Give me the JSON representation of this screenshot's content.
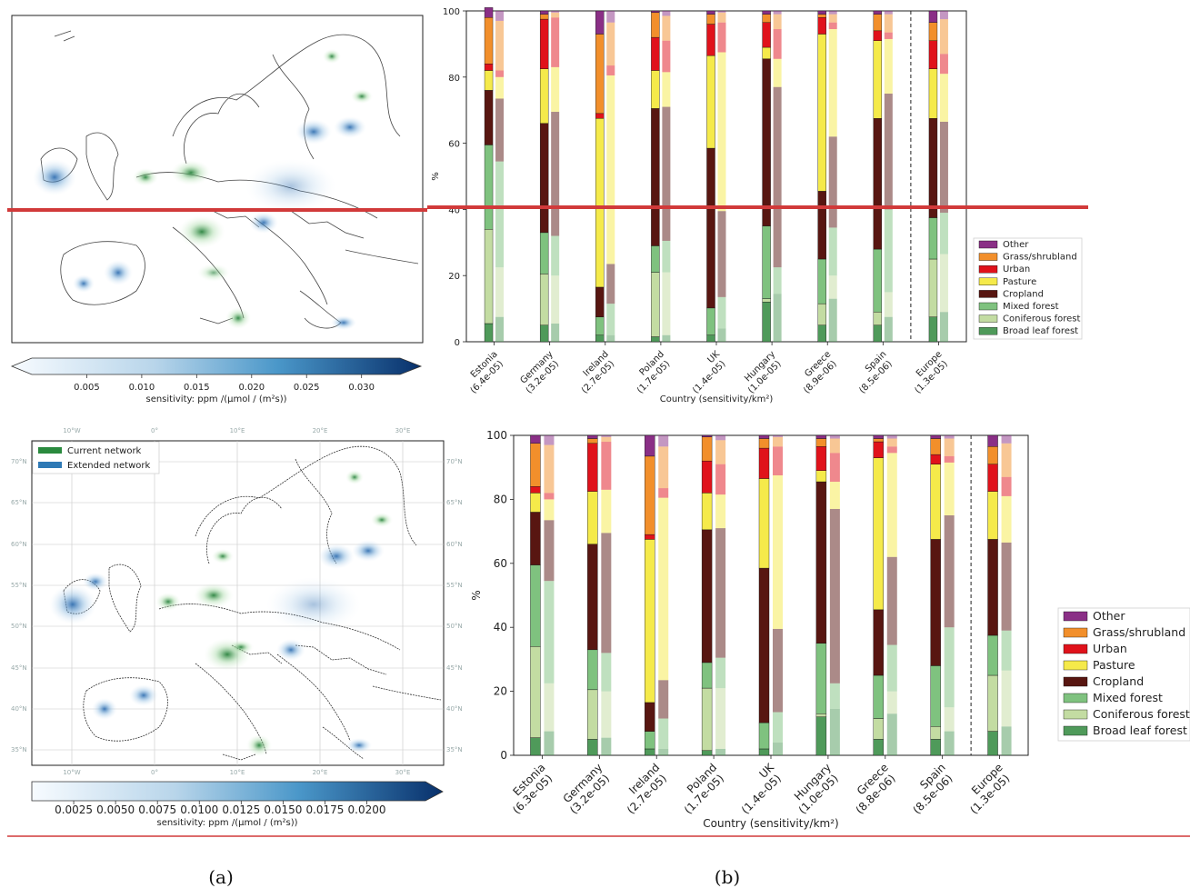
{
  "captions": {
    "a": "(a)",
    "b": "(b)"
  },
  "colors": {
    "Other": "#8a2f86",
    "Grass/shrubland": "#f28f2b",
    "Urban": "#e0121b",
    "Pasture": "#f5ea4a",
    "Cropland": "#581611",
    "Mixed forest": "#7fc27f",
    "Coniferous forest": "#c3dca2",
    "Broad leaf forest": "#4f9a5a",
    "highlight_line": "#d13a3a"
  },
  "map_top": {
    "colorbar_ticks": [
      "0.005",
      "0.010",
      "0.015",
      "0.020",
      "0.025",
      "0.030"
    ],
    "colorbar_label": "sensitivity: ppm /(μmol / (m²s))"
  },
  "map_bottom": {
    "colorbar_ticks": [
      "0.0025",
      "0.0050",
      "0.0075",
      "0.0100",
      "0.0125",
      "0.0150",
      "0.0175",
      "0.0200"
    ],
    "colorbar_label": "sensitivity: ppm /(μmol / (m²s))",
    "legend": [
      {
        "label": "Current network",
        "color": "#2a8a3e"
      },
      {
        "label": "Extended network",
        "color": "#2e79b5"
      }
    ],
    "lon_labels": [
      "10°W",
      "0°",
      "10°E",
      "20°E",
      "30°E"
    ],
    "lat_labels": [
      "70°N",
      "65°N",
      "60°N",
      "55°N",
      "50°N",
      "45°N",
      "40°N",
      "35°N"
    ]
  },
  "chart_data": [
    {
      "type": "bar",
      "subtype": "stacked",
      "panel": "top",
      "xlabel": "Country (sensitivity/km²)",
      "ylabel": "%",
      "ylim": [
        0,
        100
      ],
      "yticks": [
        0,
        20,
        40,
        60,
        80,
        100
      ],
      "categories": [
        [
          "Estonia",
          "(6.4e-05)"
        ],
        [
          "Germany",
          "(3.2e-05)"
        ],
        [
          "Ireland",
          "(2.7e-05)"
        ],
        [
          "Poland",
          "(1.7e-05)"
        ],
        [
          "UK",
          "(1.4e-05)"
        ],
        [
          "Hungary",
          "(1.0e-05)"
        ],
        [
          "Greece",
          "(8.9e-06)"
        ],
        [
          "Spain",
          "(8.5e-06)"
        ],
        [
          "Europe",
          "(1.3e-05)"
        ]
      ],
      "legend_order": [
        "Other",
        "Grass/shrubland",
        "Urban",
        "Pasture",
        "Cropland",
        "Mixed forest",
        "Coniferous forest",
        "Broad leaf forest"
      ],
      "stack_order": [
        "Broad leaf forest",
        "Coniferous forest",
        "Mixed forest",
        "Cropland",
        "Pasture",
        "Urban",
        "Grass/shrubland",
        "Other"
      ],
      "series_bar1": [
        [
          5.5,
          28.5,
          25.5,
          16.5,
          6,
          2,
          14,
          3
        ],
        [
          5,
          15.5,
          12.5,
          33,
          16.5,
          15,
          1.5,
          1
        ],
        [
          2,
          0,
          5.5,
          9,
          51,
          1.5,
          24,
          7
        ],
        [
          1.5,
          19.5,
          8,
          41.5,
          11.5,
          10,
          7.5,
          0.5
        ],
        [
          2,
          0,
          8.2,
          48.3,
          28,
          9.5,
          3,
          1
        ],
        [
          12,
          1,
          22,
          50.5,
          3.5,
          7.5,
          2.5,
          1
        ],
        [
          5,
          6.5,
          13.5,
          20.5,
          47.5,
          5,
          1,
          1
        ],
        [
          5,
          4,
          19,
          39.5,
          23.5,
          3,
          5,
          1
        ],
        [
          7.5,
          17.5,
          12.5,
          30,
          15,
          8.5,
          5.5,
          3.5
        ]
      ],
      "series_bar2": [
        [
          7.5,
          15,
          32,
          19,
          6.5,
          2,
          15,
          3
        ],
        [
          5.5,
          14.5,
          12,
          37.5,
          13.5,
          15,
          1.5,
          0.5
        ],
        [
          2,
          0,
          9.5,
          12,
          57,
          3,
          13,
          3.5
        ],
        [
          2,
          19,
          9.5,
          40.5,
          10.5,
          9.5,
          7.5,
          1.5
        ],
        [
          4,
          0,
          9.5,
          26,
          48,
          9,
          3,
          0.5
        ],
        [
          14.5,
          0,
          8,
          54.5,
          8.5,
          9,
          4.5,
          1
        ],
        [
          13,
          7,
          14.5,
          27.5,
          32.5,
          2,
          2.5,
          1
        ],
        [
          7.5,
          7.5,
          25,
          35,
          16.5,
          2,
          5.5,
          1
        ],
        [
          9,
          17.5,
          12.5,
          27.5,
          14.5,
          6,
          10.5,
          2.5
        ]
      ]
    },
    {
      "type": "bar",
      "subtype": "stacked",
      "panel": "bottom",
      "xlabel": "Country (sensitivity/km²)",
      "ylabel": "%",
      "ylim": [
        0,
        100
      ],
      "yticks": [
        0,
        20,
        40,
        60,
        80,
        100
      ],
      "categories": [
        [
          "Estonia",
          "(6.3e-05)"
        ],
        [
          "Germany",
          "(3.2e-05)"
        ],
        [
          "Ireland",
          "(2.7e-05)"
        ],
        [
          "Poland",
          "(1.7e-05)"
        ],
        [
          "UK",
          "(1.4e-05)"
        ],
        [
          "Hungary",
          "(1.0e-05)"
        ],
        [
          "Greece",
          "(8.8e-06)"
        ],
        [
          "Spain",
          "(8.5e-06)"
        ],
        [
          "Europe",
          "(1.3e-05)"
        ]
      ],
      "legend_order": [
        "Other",
        "Grass/shrubland",
        "Urban",
        "Pasture",
        "Cropland",
        "Mixed forest",
        "Coniferous forest",
        "Broad leaf forest"
      ],
      "stack_order": [
        "Broad leaf forest",
        "Coniferous forest",
        "Mixed forest",
        "Cropland",
        "Pasture",
        "Urban",
        "Grass/shrubland",
        "Other"
      ],
      "series_bar1": [
        [
          5.5,
          28.5,
          25.5,
          16.5,
          6,
          2,
          13.5,
          2.5
        ],
        [
          5,
          15.5,
          12.5,
          33,
          16.5,
          15,
          1.5,
          1
        ],
        [
          2,
          0,
          5.5,
          9,
          51,
          1.5,
          24.5,
          6.5
        ],
        [
          1.5,
          19.5,
          8,
          41.5,
          11.5,
          10,
          7.5,
          0.5
        ],
        [
          2,
          0,
          8.2,
          48.3,
          28,
          9.5,
          3,
          1
        ],
        [
          12,
          1,
          22,
          50.5,
          3.5,
          7.5,
          2.5,
          1
        ],
        [
          5,
          6.5,
          13.5,
          20.5,
          47.5,
          5,
          1,
          1
        ],
        [
          5,
          4,
          19,
          39.5,
          23.5,
          3,
          5,
          1
        ],
        [
          7.5,
          17.5,
          12.5,
          30,
          15,
          8.5,
          5.5,
          3.5
        ]
      ],
      "series_bar2": [
        [
          7.5,
          15,
          32,
          19,
          6.5,
          2,
          15,
          3
        ],
        [
          5.5,
          14.5,
          12,
          37.5,
          13.5,
          15,
          1.5,
          0.5
        ],
        [
          2,
          0,
          9.5,
          12,
          57,
          3,
          13,
          3.5
        ],
        [
          2,
          19,
          9.5,
          40.5,
          10.5,
          9.5,
          7.5,
          1.5
        ],
        [
          4,
          0,
          9.5,
          26,
          48,
          9,
          3,
          0.5
        ],
        [
          14.5,
          0,
          8,
          54.5,
          8.5,
          9,
          4.5,
          1
        ],
        [
          13,
          7,
          14.5,
          27.5,
          32.5,
          2,
          2.5,
          1
        ],
        [
          7.5,
          7.5,
          25,
          35,
          16.5,
          2,
          5.5,
          1
        ],
        [
          9,
          17.5,
          12.5,
          27.5,
          14.5,
          6,
          10.5,
          2.5
        ]
      ]
    }
  ]
}
